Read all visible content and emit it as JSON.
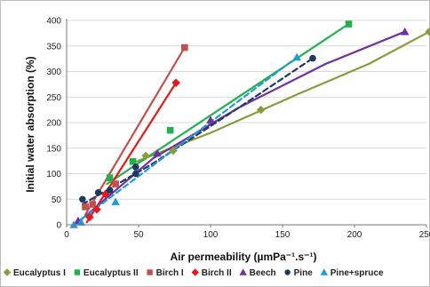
{
  "chart_data": {
    "type": "scatter",
    "xlabel": "Air permeability (µmPa⁻¹.s⁻¹)",
    "ylabel": "Initial water absorption (%)",
    "xlim": [
      0,
      250
    ],
    "ylim": [
      0,
      400
    ],
    "x_ticks": [
      "0",
      "50",
      "100",
      "150",
      "200",
      "250"
    ],
    "y_ticks": [
      "0",
      "50",
      "100",
      "150",
      "200",
      "250",
      "300",
      "350",
      "400"
    ],
    "grid": true,
    "legend_position": "bottom",
    "series": [
      {
        "name": "Eucalyptus I",
        "color": "#8b9a3c",
        "marker": "diamond",
        "dashed": false,
        "points": [
          [
            55,
            135
          ],
          [
            74,
            145
          ],
          [
            135,
            225
          ],
          [
            252,
            378
          ]
        ],
        "trend": [
          [
            45,
            120
          ],
          [
            100,
            180
          ],
          [
            160,
            255
          ],
          [
            210,
            315
          ],
          [
            252,
            378
          ]
        ]
      },
      {
        "name": "Eucalyptus II",
        "color": "#22b14c",
        "marker": "square",
        "dashed": false,
        "points": [
          [
            30,
            92
          ],
          [
            46,
            124
          ],
          [
            72,
            185
          ],
          [
            196,
            393
          ]
        ],
        "trend": [
          [
            28,
            80
          ],
          [
            196,
            393
          ]
        ]
      },
      {
        "name": "Birch I",
        "color": "#c0504d",
        "marker": "square",
        "dashed": false,
        "points": [
          [
            13,
            35
          ],
          [
            18,
            40
          ],
          [
            34,
            80
          ],
          [
            82,
            347
          ]
        ],
        "trend": [
          [
            13,
            20
          ],
          [
            82,
            347
          ]
        ]
      },
      {
        "name": "Birch II",
        "color": "#e31a1c",
        "marker": "diamond",
        "dashed": false,
        "points": [
          [
            16,
            15
          ],
          [
            21,
            30
          ],
          [
            27,
            60
          ],
          [
            76,
            278
          ]
        ],
        "trend": [
          [
            14,
            5
          ],
          [
            76,
            278
          ]
        ]
      },
      {
        "name": "Beech",
        "color": "#7030a0",
        "marker": "triangle",
        "dashed": false,
        "points": [
          [
            8,
            8
          ],
          [
            63,
            140
          ],
          [
            100,
            205
          ],
          [
            235,
            378
          ]
        ],
        "trend": [
          [
            10,
            10
          ],
          [
            60,
            130
          ],
          [
            120,
            230
          ],
          [
            180,
            315
          ],
          [
            235,
            378
          ]
        ]
      },
      {
        "name": "Pine",
        "color": "#1f3864",
        "marker": "circle",
        "dashed": true,
        "points": [
          [
            11,
            50
          ],
          [
            22,
            63
          ],
          [
            30,
            68
          ],
          [
            48,
            100
          ],
          [
            48,
            113
          ],
          [
            171,
            326
          ]
        ],
        "trend": [
          [
            11,
            40
          ],
          [
            60,
            120
          ],
          [
            120,
            230
          ],
          [
            171,
            326
          ]
        ]
      },
      {
        "name": "Pine+spruce",
        "color": "#1e9bd7",
        "marker": "triangle",
        "dashed": true,
        "points": [
          [
            5,
            0
          ],
          [
            10,
            5
          ],
          [
            34,
            45
          ],
          [
            160,
            328
          ]
        ],
        "trend": [
          [
            5,
            0
          ],
          [
            160,
            328
          ]
        ]
      }
    ]
  }
}
